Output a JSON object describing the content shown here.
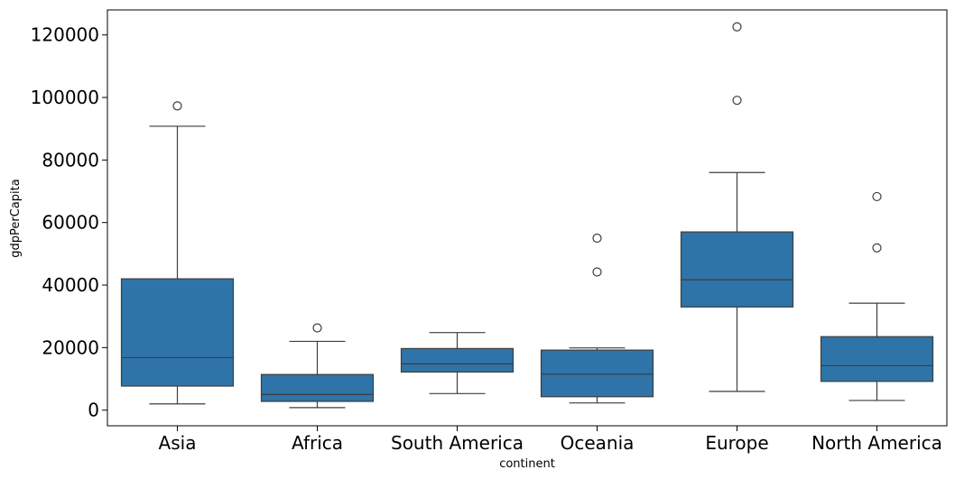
{
  "chart_data": {
    "type": "box",
    "xlabel": "continent",
    "ylabel": "gdpPerCapita",
    "ylim": [
      -5000,
      128000
    ],
    "yticks": [
      0,
      20000,
      40000,
      60000,
      80000,
      100000,
      120000
    ],
    "ytick_labels": [
      "0",
      "20000",
      "40000",
      "60000",
      "80000",
      "100000",
      "120000"
    ],
    "box_color": "#2e74a8",
    "line_color": "#3d3d3d",
    "categories": [
      "Asia",
      "Africa",
      "South America",
      "Oceania",
      "Europe",
      "North America"
    ],
    "boxes": [
      {
        "category": "Asia",
        "whisker_low": 2000,
        "q1": 7700,
        "median": 16800,
        "q3": 42000,
        "whisker_high": 90800,
        "outliers": [
          97300
        ]
      },
      {
        "category": "Africa",
        "whisker_low": 800,
        "q1": 2800,
        "median": 5000,
        "q3": 11400,
        "whisker_high": 22000,
        "outliers": [
          26300
        ]
      },
      {
        "category": "South America",
        "whisker_low": 5300,
        "q1": 12200,
        "median": 14800,
        "q3": 19700,
        "whisker_high": 24800,
        "outliers": []
      },
      {
        "category": "Oceania",
        "whisker_low": 2300,
        "q1": 4300,
        "median": 11500,
        "q3": 19200,
        "whisker_high": 19900,
        "outliers": [
          44200,
          55000
        ]
      },
      {
        "category": "Europe",
        "whisker_low": 6000,
        "q1": 33000,
        "median": 41700,
        "q3": 57000,
        "whisker_high": 76000,
        "outliers": [
          99100,
          122600
        ]
      },
      {
        "category": "North America",
        "whisker_low": 3100,
        "q1": 9200,
        "median": 14200,
        "q3": 23500,
        "whisker_high": 34200,
        "outliers": [
          51900,
          68300
        ]
      }
    ]
  }
}
